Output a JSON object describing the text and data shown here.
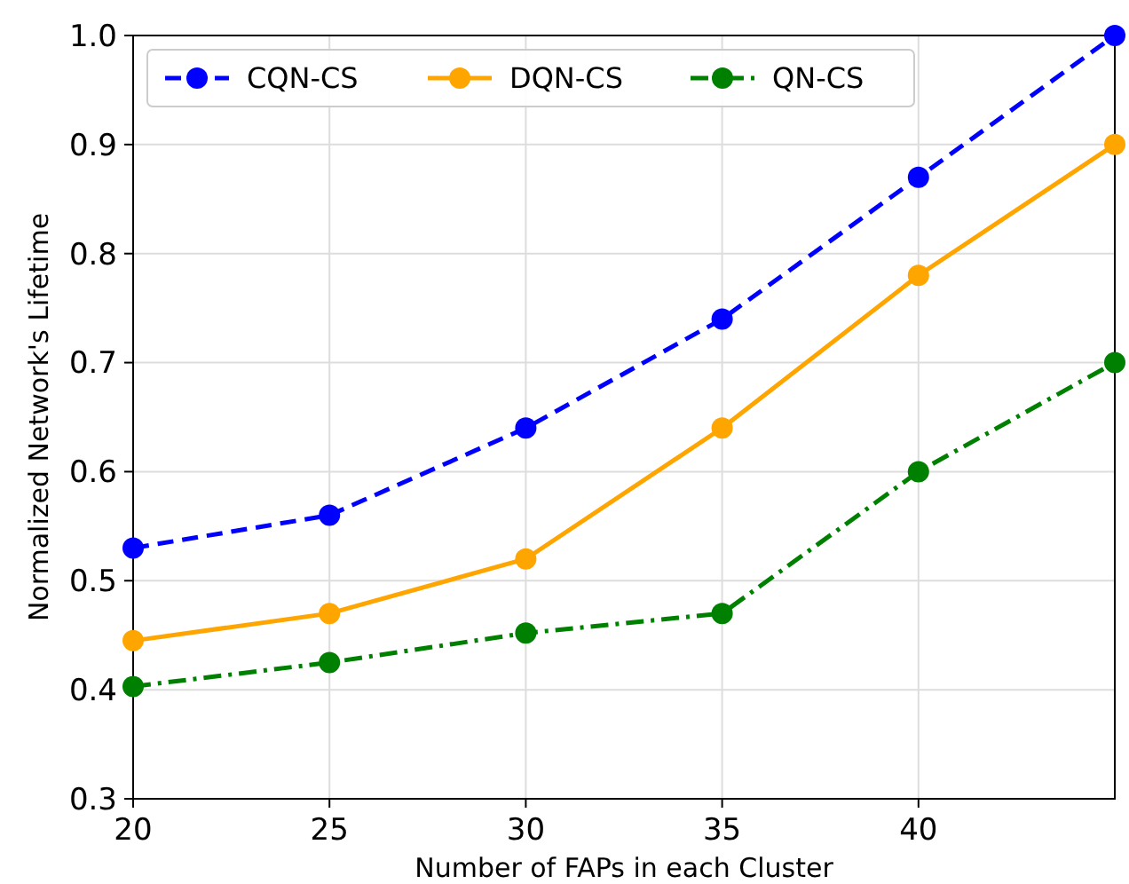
{
  "chart_data": {
    "type": "line",
    "xlabel": "Number of FAPs in each Cluster",
    "ylabel": "Normalized Network's Lifetime",
    "x": [
      20,
      25,
      30,
      35,
      40,
      45
    ],
    "xlim": [
      20,
      45
    ],
    "xticks": [
      20,
      25,
      30,
      35,
      40
    ],
    "ylim": [
      0.3,
      1.0
    ],
    "yticks": [
      {
        "value": 0.3,
        "label": "0.3"
      },
      {
        "value": 0.4,
        "label": "0.4"
      },
      {
        "value": 0.5,
        "label": "0.5"
      },
      {
        "value": 0.6,
        "label": "0.6"
      },
      {
        "value": 0.7,
        "label": "0.7"
      },
      {
        "value": 0.8,
        "label": "0.8"
      },
      {
        "value": 0.9,
        "label": "0.9"
      },
      {
        "value": 1.0,
        "label": "1.0"
      }
    ],
    "grid": true,
    "legend": "top left",
    "marker": "circle",
    "series": [
      {
        "name": "CQN-CS",
        "color": "#0000ff",
        "line_style": "dashed",
        "values": [
          0.53,
          0.56,
          0.64,
          0.74,
          0.87,
          1.0
        ]
      },
      {
        "name": "DQN-CS",
        "color": "#ffa500",
        "line_style": "solid",
        "values": [
          0.445,
          0.47,
          0.52,
          0.64,
          0.78,
          0.9
        ]
      },
      {
        "name": "QN-CS",
        "color": "#008000",
        "line_style": "dashdot",
        "values": [
          0.403,
          0.425,
          0.452,
          0.47,
          0.6,
          0.7
        ]
      }
    ]
  }
}
